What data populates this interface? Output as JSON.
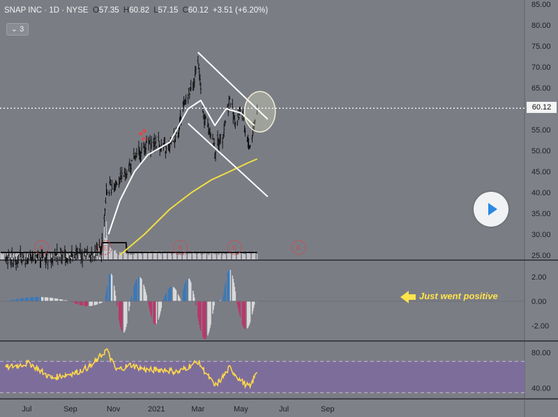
{
  "header": {
    "symbol": "SNAP INC · 1D · NYSE",
    "o_label": "O",
    "o": "57.35",
    "h_label": "H",
    "h": "60.82",
    "l_label": "L",
    "l": "57.15",
    "c_label": "C",
    "c": "60.12",
    "change": "+3.51 (+6.20%)",
    "indicator_count": "3",
    "indicator_chevron": "⌄"
  },
  "price_tag": "60.12",
  "annotation": "Just went positive",
  "colors": {
    "background": "#7b7d85",
    "candle": "#111111",
    "sma_fast": "#ffffff",
    "sma_slow": "#f0e040",
    "volume_bar": "#c7c7cc",
    "volume_ma": "#111111",
    "macd_positive": "#3b79b8",
    "macd_negative": "#b8386a",
    "macd_fading": "#d9d9d9",
    "rsi_line": "#ffd84a",
    "rsi_band": "#7e6a9f",
    "earnings_marker": "#d64545",
    "channel_line": "#ffffff"
  },
  "chart_data": [
    {
      "type": "candlestick",
      "panel": "price",
      "title": "SNAP INC",
      "interval": "1D",
      "exchange": "NYSE",
      "x_ticks": [
        "Jul",
        "Sep",
        "Nov",
        "2021",
        "Mar",
        "May",
        "Jul",
        "Sep"
      ],
      "y_ticks": [
        25,
        30,
        35,
        40,
        45,
        50,
        55,
        60,
        65,
        70,
        75,
        80,
        85
      ],
      "ylim": [
        24,
        86
      ],
      "last_price": 60.12,
      "close_path": [
        {
          "date": "2020-06-01",
          "value": 24
        },
        {
          "date": "2020-09-15",
          "value": 25
        },
        {
          "date": "2020-10-15",
          "value": 26
        },
        {
          "date": "2020-10-22",
          "value": 40
        },
        {
          "date": "2020-11-15",
          "value": 44
        },
        {
          "date": "2020-12-15",
          "value": 51
        },
        {
          "date": "2021-01-01",
          "value": 52
        },
        {
          "date": "2021-01-15",
          "value": 50
        },
        {
          "date": "2021-02-01",
          "value": 55
        },
        {
          "date": "2021-02-10",
          "value": 62
        },
        {
          "date": "2021-02-22",
          "value": 65
        },
        {
          "date": "2021-03-01",
          "value": 72
        },
        {
          "date": "2021-03-08",
          "value": 59
        },
        {
          "date": "2021-03-20",
          "value": 54
        },
        {
          "date": "2021-03-25",
          "value": 50
        },
        {
          "date": "2021-04-05",
          "value": 54
        },
        {
          "date": "2021-04-15",
          "value": 62
        },
        {
          "date": "2021-04-25",
          "value": 56
        },
        {
          "date": "2021-05-01",
          "value": 61
        },
        {
          "date": "2021-05-08",
          "value": 53
        },
        {
          "date": "2021-05-14",
          "value": 51
        },
        {
          "date": "2021-05-24",
          "value": 60.12
        }
      ],
      "moving_averages": [
        {
          "name": "fast",
          "color": "#ffffff",
          "points": [
            {
              "date": "2020-10-25",
              "value": 30
            },
            {
              "date": "2020-11-10",
              "value": 38
            },
            {
              "date": "2020-12-01",
              "value": 45
            },
            {
              "date": "2020-12-20",
              "value": 49
            },
            {
              "date": "2021-01-20",
              "value": 52
            },
            {
              "date": "2021-02-15",
              "value": 60
            },
            {
              "date": "2021-03-05",
              "value": 62
            },
            {
              "date": "2021-03-25",
              "value": 56
            },
            {
              "date": "2021-04-10",
              "value": 60
            },
            {
              "date": "2021-05-01",
              "value": 59
            },
            {
              "date": "2021-05-20",
              "value": 56
            }
          ]
        },
        {
          "name": "slow",
          "color": "#f0e040",
          "points": [
            {
              "date": "2020-11-10",
              "value": 25
            },
            {
              "date": "2020-12-15",
              "value": 30
            },
            {
              "date": "2021-01-20",
              "value": 36
            },
            {
              "date": "2021-02-20",
              "value": 40
            },
            {
              "date": "2021-03-20",
              "value": 43
            },
            {
              "date": "2021-04-15",
              "value": 45
            },
            {
              "date": "2021-05-10",
              "value": 47
            },
            {
              "date": "2021-05-24",
              "value": 48
            }
          ]
        }
      ],
      "trend_lines": [
        {
          "from": {
            "date": "2021-03-01",
            "value": 73.5
          },
          "to": {
            "date": "2021-06-08",
            "value": 57.5
          }
        },
        {
          "from": {
            "date": "2021-02-15",
            "value": 56.5
          },
          "to": {
            "date": "2021-06-08",
            "value": 39
          }
        }
      ],
      "earnings_markers": [
        "2020-07-22",
        "2020-10-20",
        "2021-02-04",
        "2021-04-22",
        "2021-07-22"
      ]
    },
    {
      "type": "bar",
      "panel": "macd_histogram",
      "y_ticks": [
        2.0,
        0.0,
        -2.0
      ],
      "ylim": [
        -3.2,
        3.2
      ],
      "segments": [
        {
          "start": "2020-06-01",
          "end": "2020-09-01",
          "peak": 0.35
        },
        {
          "start": "2020-09-01",
          "end": "2020-10-20",
          "peak": -0.4
        },
        {
          "start": "2020-10-20",
          "end": "2020-11-05",
          "peak": 2.3
        },
        {
          "start": "2020-11-05",
          "end": "2020-11-25",
          "peak": -2.6
        },
        {
          "start": "2020-11-25",
          "end": "2020-12-20",
          "peak": 2.0
        },
        {
          "start": "2020-12-20",
          "end": "2021-01-10",
          "peak": -1.9
        },
        {
          "start": "2021-01-10",
          "end": "2021-02-05",
          "peak": 1.2
        },
        {
          "start": "2021-02-05",
          "end": "2021-02-25",
          "peak": 1.9
        },
        {
          "start": "2021-02-25",
          "end": "2021-03-25",
          "peak": -3.1
        },
        {
          "start": "2021-03-25",
          "end": "2021-04-05",
          "peak": 0.1
        },
        {
          "start": "2021-04-05",
          "end": "2021-04-25",
          "peak": 2.6
        },
        {
          "start": "2021-04-25",
          "end": "2021-05-21",
          "peak": -2.3
        },
        {
          "start": "2021-05-21",
          "end": "2021-05-24",
          "peak": 0.15
        }
      ]
    },
    {
      "type": "line",
      "panel": "rsi",
      "y_ticks": [
        80.0,
        40.0
      ],
      "ylim": [
        28,
        92
      ],
      "band": [
        35,
        70
      ],
      "points": [
        {
          "date": "2020-06-01",
          "value": 63
        },
        {
          "date": "2020-07-05",
          "value": 68
        },
        {
          "date": "2020-08-05",
          "value": 51
        },
        {
          "date": "2020-09-10",
          "value": 58
        },
        {
          "date": "2020-10-01",
          "value": 65
        },
        {
          "date": "2020-10-22",
          "value": 83
        },
        {
          "date": "2020-11-05",
          "value": 60
        },
        {
          "date": "2020-11-25",
          "value": 66
        },
        {
          "date": "2020-12-20",
          "value": 60
        },
        {
          "date": "2021-01-10",
          "value": 61
        },
        {
          "date": "2021-02-01",
          "value": 58
        },
        {
          "date": "2021-02-15",
          "value": 64
        },
        {
          "date": "2021-03-01",
          "value": 70
        },
        {
          "date": "2021-03-25",
          "value": 42
        },
        {
          "date": "2021-04-05",
          "value": 52
        },
        {
          "date": "2021-04-15",
          "value": 63
        },
        {
          "date": "2021-05-01",
          "value": 48
        },
        {
          "date": "2021-05-14",
          "value": 41
        },
        {
          "date": "2021-05-24",
          "value": 59
        }
      ]
    }
  ]
}
